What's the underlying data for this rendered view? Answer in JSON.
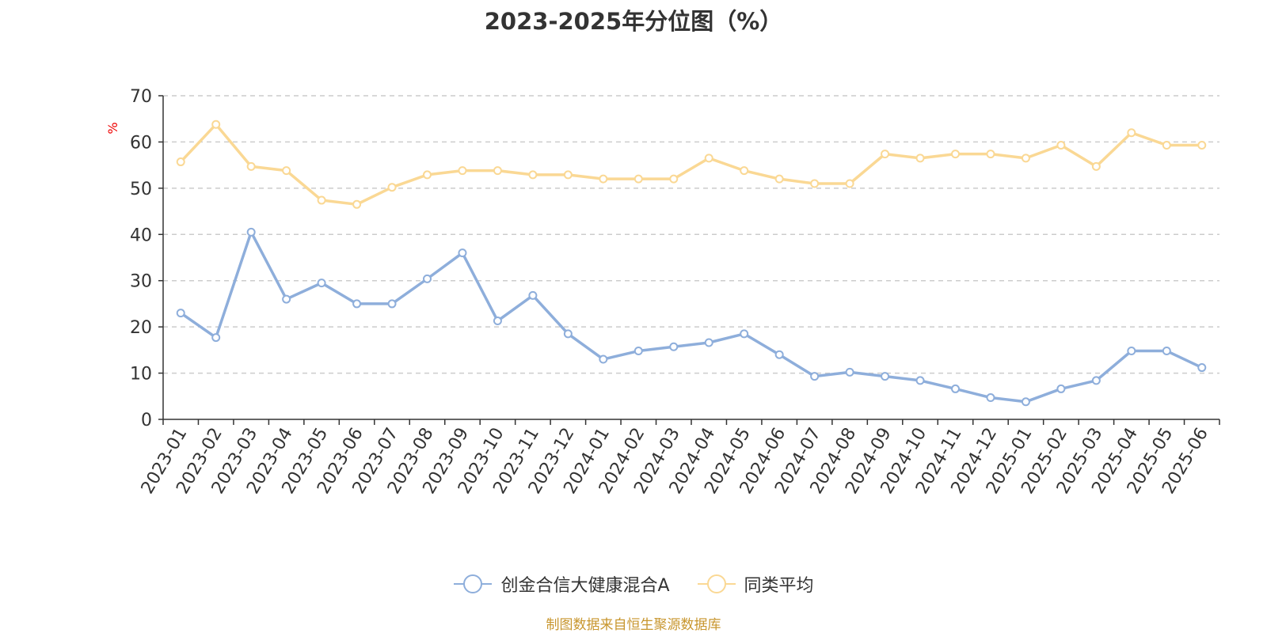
{
  "title": "2023-2025年分位图（%）",
  "source": "制图数据来自恒生聚源数据库",
  "chart_data": {
    "type": "line",
    "title": "2023-2025年分位图（%）",
    "ylabel": "%",
    "xlabel": "",
    "ylim": [
      0,
      70
    ],
    "yticks": [
      0,
      10,
      20,
      30,
      40,
      50,
      60,
      70
    ],
    "grid": "horizontal dashed",
    "legend_position": "bottom-center",
    "categories": [
      "2023-01",
      "2023-02",
      "2023-03",
      "2023-04",
      "2023-05",
      "2023-06",
      "2023-07",
      "2023-08",
      "2023-09",
      "2023-10",
      "2023-11",
      "2023-12",
      "2024-01",
      "2024-02",
      "2024-03",
      "2024-04",
      "2024-05",
      "2024-06",
      "2024-07",
      "2024-08",
      "2024-09",
      "2024-10",
      "2024-11",
      "2024-12",
      "2025-01",
      "2025-02",
      "2025-03",
      "2025-04",
      "2025-05",
      "2025-06"
    ],
    "series": [
      {
        "name": "创金合信大健康混合A",
        "color": "#8eaedb",
        "values": [
          23.0,
          17.7,
          40.5,
          26.0,
          29.5,
          25.0,
          25.0,
          30.4,
          36.0,
          21.3,
          26.8,
          18.5,
          13.0,
          14.8,
          15.7,
          16.6,
          18.5,
          14.0,
          9.3,
          10.2,
          9.3,
          8.4,
          6.6,
          4.7,
          3.8,
          6.6,
          8.4,
          14.8,
          14.8,
          11.2
        ]
      },
      {
        "name": "同类平均",
        "color": "#fad894",
        "values": [
          55.7,
          63.8,
          54.7,
          53.8,
          47.4,
          46.5,
          50.2,
          52.9,
          53.8,
          53.8,
          52.9,
          52.9,
          52.0,
          52.0,
          52.0,
          56.5,
          53.8,
          52.0,
          51.0,
          51.0,
          57.4,
          56.5,
          57.4,
          57.4,
          56.5,
          59.3,
          54.7,
          62.0,
          59.3,
          59.3
        ]
      }
    ]
  }
}
